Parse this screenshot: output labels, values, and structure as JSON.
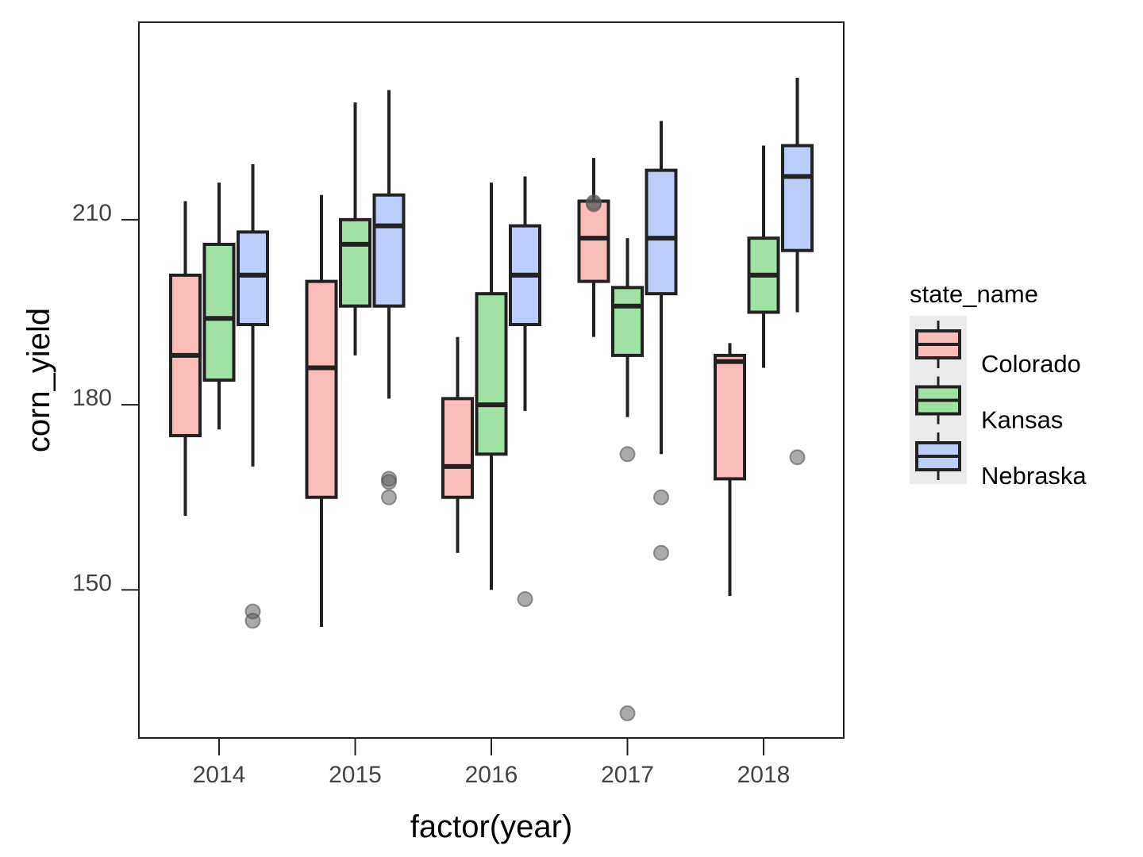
{
  "chart_data": {
    "type": "boxplot",
    "xlabel": "factor(year)",
    "ylabel": "corn_yield",
    "ylim": [
      126,
      242
    ],
    "yticks": [
      150,
      180,
      210
    ],
    "categories": [
      "2014",
      "2015",
      "2016",
      "2017",
      "2018"
    ],
    "legend": {
      "title": "state_name",
      "placement": "right"
    },
    "series": [
      {
        "name": "Colorado",
        "color": "#f8bdbb",
        "boxes": [
          {
            "min": 162,
            "q1": 175,
            "median": 188,
            "q3": 201,
            "max": 213,
            "outliers": []
          },
          {
            "min": 144,
            "q1": 165,
            "median": 186,
            "q3": 200,
            "max": 214,
            "outliers": []
          },
          {
            "min": 156,
            "q1": 165,
            "median": 170,
            "q3": 181,
            "max": 191,
            "outliers": []
          },
          {
            "min": 191,
            "q1": 200,
            "median": 207,
            "q3": 213,
            "max": 220,
            "outliers": [
              212.5,
              212.8
            ]
          },
          {
            "min": 149,
            "q1": 168,
            "median": 187,
            "q3": 188,
            "max": 190,
            "outliers": []
          }
        ]
      },
      {
        "name": "Kansas",
        "color": "#a1e1a5",
        "boxes": [
          {
            "min": 176,
            "q1": 184,
            "median": 194,
            "q3": 206,
            "max": 216,
            "outliers": []
          },
          {
            "min": 188,
            "q1": 196,
            "median": 206,
            "q3": 210,
            "max": 229,
            "outliers": []
          },
          {
            "min": 150,
            "q1": 172,
            "median": 180,
            "q3": 198,
            "max": 216,
            "outliers": []
          },
          {
            "min": 178,
            "q1": 188,
            "median": 196,
            "q3": 199,
            "max": 207,
            "outliers": [
              172,
              130
            ]
          },
          {
            "min": 186,
            "q1": 195,
            "median": 201,
            "q3": 207,
            "max": 222,
            "outliers": []
          }
        ]
      },
      {
        "name": "Nebraska",
        "color": "#bccdfa",
        "boxes": [
          {
            "min": 170,
            "q1": 193,
            "median": 201,
            "q3": 208,
            "max": 219,
            "outliers": [
              146.5,
              145
            ]
          },
          {
            "min": 181,
            "q1": 196,
            "median": 209,
            "q3": 214,
            "max": 231,
            "outliers": [
              167.5,
              168,
              165
            ]
          },
          {
            "min": 179,
            "q1": 193,
            "median": 201,
            "q3": 209,
            "max": 217,
            "outliers": [
              148.5
            ]
          },
          {
            "min": 172,
            "q1": 198,
            "median": 207,
            "q3": 218,
            "max": 226,
            "outliers": [
              165,
              156
            ]
          },
          {
            "min": 195,
            "q1": 205,
            "median": 217,
            "q3": 222,
            "max": 233,
            "outliers": [
              171.5
            ]
          }
        ]
      }
    ]
  }
}
